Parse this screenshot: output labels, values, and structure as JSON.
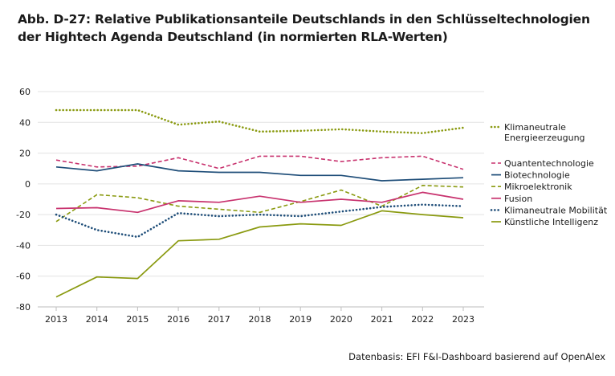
{
  "title_lines": [
    "Abb. D-27: Relative Publikationsanteile Deutschlands in den Schlüsseltechnologien",
    "der Hightech Agenda Deutschland (in normierten RLA-Werten)"
  ],
  "source": "Datenbasis: EFI F&I-Dashboard basierend auf OpenAlex",
  "chart_data": {
    "type": "line",
    "title": "Abb. D-27: Relative Publikationsanteile Deutschlands in den Schlüsseltechnologien der Hightech Agenda Deutschland (in normierten RLA-Werten)",
    "x": [
      "2013",
      "2014",
      "2015",
      "2016",
      "2017",
      "2018",
      "2019",
      "2020",
      "2021",
      "2022",
      "2023"
    ],
    "ylim": [
      -80,
      60
    ],
    "yticks": [
      60,
      40,
      20,
      0,
      -20,
      -40,
      -60,
      -80
    ],
    "grid": true,
    "legend_position": "right",
    "series": [
      {
        "name": "Klimaneutrale Energieerzeugung",
        "legend_lines": [
          "Klimaneutrale",
          "Energieerzeugung"
        ],
        "color": "#8a9a10",
        "style": "dotted-heavy",
        "values": [
          48,
          48,
          48,
          38.5,
          40.5,
          34,
          34.5,
          35.5,
          34,
          33,
          36.5
        ]
      },
      {
        "name": "Quantentechnologie",
        "legend_lines": [
          "Quantentechnologie"
        ],
        "color": "#c8326e",
        "style": "dashed",
        "values": [
          15.5,
          11,
          11.5,
          17,
          10,
          18,
          18,
          14.5,
          17,
          18,
          9.5
        ]
      },
      {
        "name": "Biotechnologie",
        "legend_lines": [
          "Biotechnologie"
        ],
        "color": "#1f4e79",
        "style": "solid",
        "values": [
          11,
          8.5,
          13,
          8.5,
          7.5,
          7.5,
          5.5,
          5.5,
          2,
          3,
          4
        ]
      },
      {
        "name": "Mikroelektronik",
        "legend_lines": [
          "Mikroelektronik"
        ],
        "color": "#8a9a10",
        "style": "dashed",
        "values": [
          -24.5,
          -7,
          -9,
          -14.5,
          -16.5,
          -18.5,
          -11.5,
          -4,
          -14.5,
          -1,
          -2
        ]
      },
      {
        "name": "Fusion",
        "legend_lines": [
          "Fusion"
        ],
        "color": "#c8326e",
        "style": "solid",
        "values": [
          -16,
          -15.5,
          -18.5,
          -11,
          -12,
          -8,
          -12,
          -10,
          -12,
          -5.5,
          -10
        ]
      },
      {
        "name": "Klimaneutrale Mobilität",
        "legend_lines": [
          "Klimaneutrale Mobilität"
        ],
        "color": "#1f4e79",
        "style": "dotted-heavy",
        "values": [
          -20,
          -30,
          -34.5,
          -19,
          -21,
          -20,
          -21,
          -18,
          -15,
          -13.5,
          -14.5
        ]
      },
      {
        "name": "Künstliche Intelligenz",
        "legend_lines": [
          "Künstliche Intelligenz"
        ],
        "color": "#8a9a10",
        "style": "solid",
        "values": [
          -73.5,
          -60.5,
          -61.5,
          -37,
          -36,
          -28,
          -26,
          -27,
          -17.5,
          -20,
          -22
        ]
      }
    ]
  }
}
